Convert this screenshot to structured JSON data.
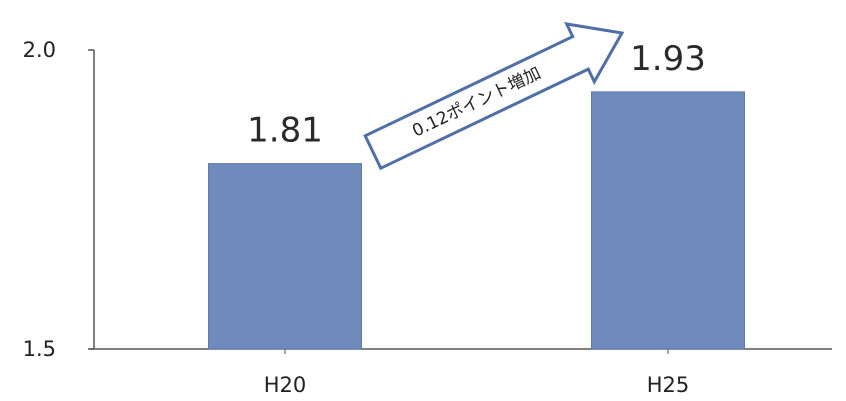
{
  "chart_data": {
    "type": "bar",
    "categories": [
      "H20",
      "H25"
    ],
    "values": [
      1.81,
      1.93
    ],
    "data_labels": [
      "1.81",
      "1.93"
    ],
    "ylim": [
      1.5,
      2.0
    ],
    "yticks": [
      1.5,
      2.0
    ],
    "ytick_labels": [
      "1.5",
      "2.0"
    ],
    "title": "",
    "xlabel": "",
    "ylabel": "",
    "grid": false,
    "bar_color": "#6f8bbd",
    "bar_edge_color": "#5f79ab",
    "axis_color": "#555555",
    "annotation": {
      "text": "0.12ポイント増加",
      "style": "outlined-arrow"
    }
  }
}
